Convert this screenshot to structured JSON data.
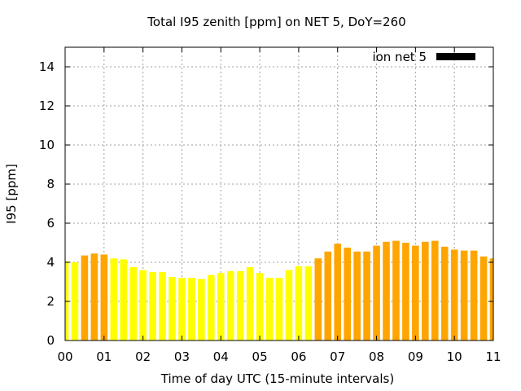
{
  "chart_data": {
    "type": "bar",
    "title": "Total I95 zenith [ppm] on NET 5, DoY=260",
    "xlabel": "Time of day UTC (15-minute intervals)",
    "ylabel": "I95 [ppm]",
    "xlim": [
      0,
      11
    ],
    "ylim": [
      0,
      15
    ],
    "x_tick_labels": [
      "00",
      "01",
      "02",
      "03",
      "04",
      "05",
      "06",
      "07",
      "08",
      "09",
      "10",
      "11"
    ],
    "y_tick_labels": [
      "0",
      "2",
      "4",
      "6",
      "8",
      "10",
      "12",
      "14"
    ],
    "grid": true,
    "legend": {
      "label": "ion net 5",
      "position": "top-right",
      "swatch_color": "#000000"
    },
    "bar_interval_hours": 0.25,
    "colors": {
      "low": "#ffff00",
      "high": "#ffa500"
    },
    "color_threshold": 4.2,
    "series": [
      {
        "x": [
          0.0,
          0.25,
          0.5,
          0.75,
          1.0,
          1.25,
          1.5,
          1.75,
          2.0,
          2.25,
          2.5,
          2.75,
          3.0,
          3.25,
          3.5,
          3.75,
          4.0,
          4.25,
          4.5,
          4.75,
          5.0,
          5.25,
          5.5,
          5.75,
          6.0,
          6.25,
          6.5,
          6.75,
          7.0,
          7.25,
          7.5,
          7.75,
          8.0,
          8.25,
          8.5,
          8.75,
          9.0,
          9.25,
          9.5,
          9.75,
          10.0,
          10.25,
          10.5,
          10.75,
          11.0
        ],
        "values": [
          4.05,
          4.0,
          4.35,
          4.45,
          4.4,
          4.2,
          4.15,
          3.75,
          3.6,
          3.5,
          3.5,
          3.25,
          3.2,
          3.2,
          3.15,
          3.35,
          3.45,
          3.55,
          3.55,
          3.75,
          3.45,
          3.2,
          3.2,
          3.6,
          3.8,
          3.8,
          4.2,
          4.55,
          4.95,
          4.75,
          4.55,
          4.55,
          4.85,
          5.05,
          5.1,
          5.0,
          4.85,
          5.05,
          5.1,
          4.8,
          4.65,
          4.6,
          4.6,
          4.3,
          4.2
        ]
      }
    ]
  }
}
